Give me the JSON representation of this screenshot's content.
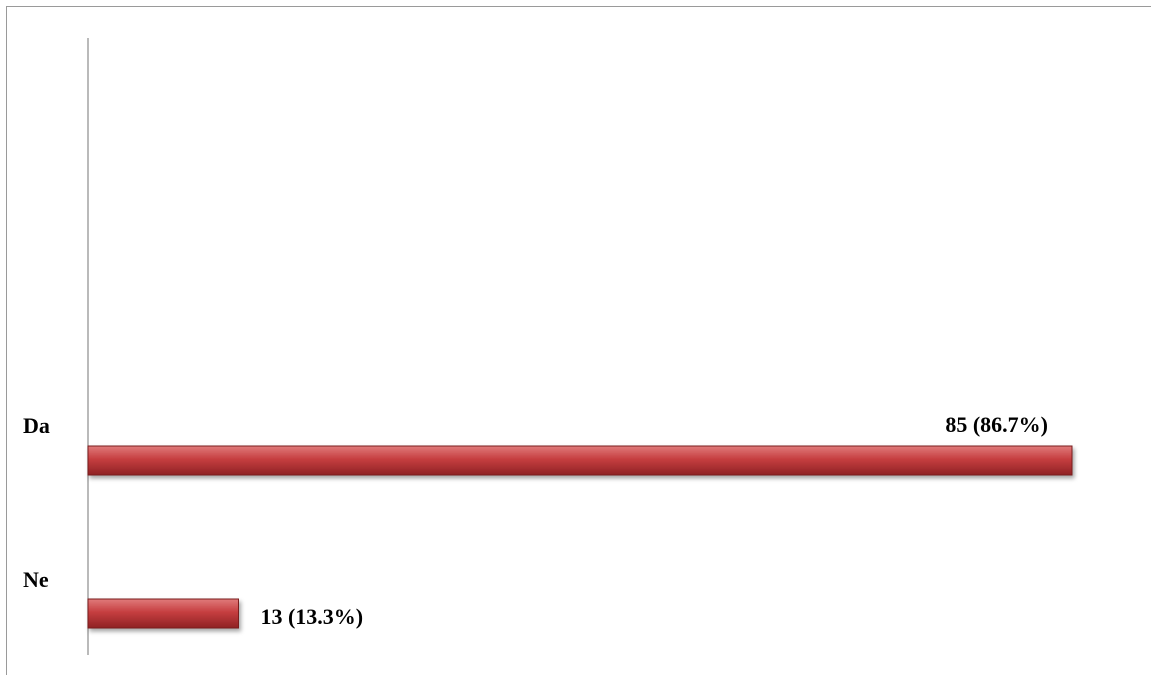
{
  "chart_data": {
    "type": "bar",
    "orientation": "horizontal",
    "categories": [
      "Da",
      "Ne"
    ],
    "values": [
      85,
      13
    ],
    "data_labels": [
      "85 (86.7%)",
      "13 (13.3%)"
    ],
    "bar_color": "#c0393b",
    "grid": false,
    "legend": "none"
  }
}
